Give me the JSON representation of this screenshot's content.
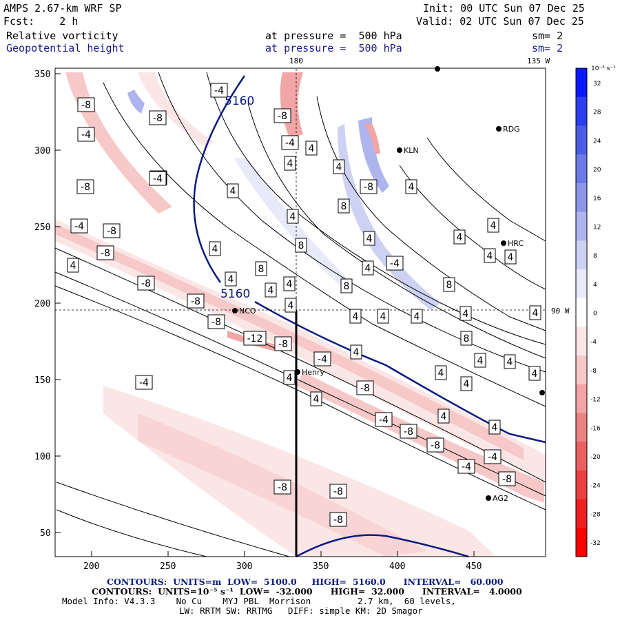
{
  "header": {
    "model_title": "AMPS 2.67-km WRF SP",
    "init": "Init: 00 UTC Sun 07 Dec 25",
    "forecast": "Fcst:    2 h",
    "valid": "Valid: 02 UTC Sun 07 Dec 25",
    "field1_name": "Relative vorticity",
    "field1_level": "at pressure =  500 hPa",
    "field1_sm": "sm= 2",
    "field2_name": "Geopotential height",
    "field2_level": "at pressure =  500 hPa",
    "field2_sm": "sm= 2"
  },
  "meridians": {
    "m180": "180",
    "m135": "135 W",
    "m90": "90 W"
  },
  "axes": {
    "x_ticks": [
      "200",
      "250",
      "300",
      "350",
      "400",
      "450"
    ],
    "y_ticks": [
      "350",
      "300",
      "250",
      "200",
      "150",
      "100",
      "50"
    ]
  },
  "colorbar": {
    "unit": "10⁻⁵ s⁻¹",
    "labels": [
      "32",
      "28",
      "24",
      "20",
      "16",
      "12",
      "8",
      "4",
      "0",
      "-4",
      "-8",
      "-12",
      "-16",
      "-20",
      "-24",
      "-28",
      "-32"
    ],
    "colors": [
      "#0a1aff",
      "#2a3ef0",
      "#4a5ce6",
      "#6a7ae6",
      "#8c96e8",
      "#aeb4ee",
      "#cdd2f4",
      "#e8eafa",
      "#ffffff",
      "#fbe6e6",
      "#f6c8c8",
      "#f1a5a5",
      "#ec8282",
      "#ea5f5f",
      "#ec3f3f",
      "#f02020",
      "#ff0000"
    ]
  },
  "stations": [
    {
      "name": "RDG"
    },
    {
      "name": "KLN"
    },
    {
      "name": "HRC"
    },
    {
      "name": "NCO"
    },
    {
      "name": "Henry"
    },
    {
      "name": "AG2"
    }
  ],
  "height_contour_label": "5160",
  "vort_labels": [
    "-4",
    "-8",
    "4",
    "8",
    "-12"
  ],
  "footer": {
    "line1_a": "CONTOURS:  UNITS=m  LOW=  5100.0",
    "line1_b": "HIGH=  5160.0",
    "line1_c": "INTERVAL=   60.000",
    "line2_a": "CONTOURS:  UNITS=10⁻⁵ s⁻¹  LOW=  -32.000",
    "line2_b": "HIGH=  32.000",
    "line2_c": "INTERVAL=   4.0000",
    "line3": "Model Info: V4.3.3    No Cu    MYJ PBL  Morrison         2.7 km,  60 levels,",
    "line4": "LW: RRTM SW: RRTMG   DIFF: simple KM: 2D Smagor"
  }
}
